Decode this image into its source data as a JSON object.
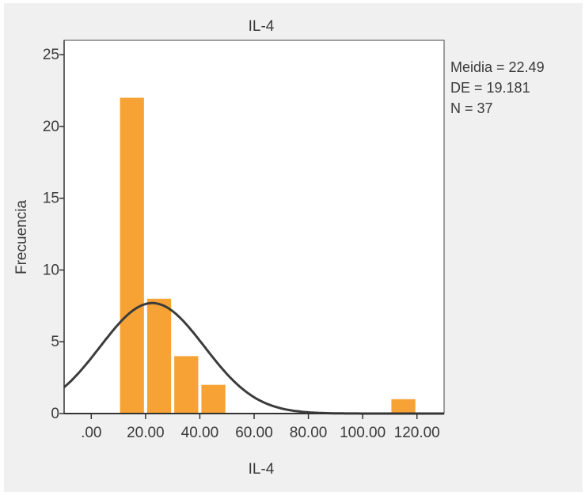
{
  "chart_data": {
    "type": "bar",
    "title": "IL-4",
    "xlabel": "IL-4",
    "ylabel": "Frecuencia",
    "bins": [
      {
        "start": 10,
        "end": 20,
        "count": 22
      },
      {
        "start": 20,
        "end": 30,
        "count": 8
      },
      {
        "start": 30,
        "end": 40,
        "count": 4
      },
      {
        "start": 40,
        "end": 50,
        "count": 2
      },
      {
        "start": 110,
        "end": 120,
        "count": 1
      }
    ],
    "xlim": [
      -10,
      130
    ],
    "ylim": [
      0,
      26
    ],
    "x_ticks": [
      0,
      20,
      40,
      60,
      80,
      100,
      120
    ],
    "x_tick_labels": [
      ".00",
      "20.00",
      "40.00",
      "60.00",
      "80.00",
      "100.00",
      "120.00"
    ],
    "y_ticks": [
      0,
      5,
      10,
      15,
      20,
      25
    ],
    "y_tick_labels": [
      "0",
      "5",
      "10",
      "15",
      "20",
      "25"
    ],
    "normal_curve": {
      "mean": 22.49,
      "sd": 19.181,
      "n": 37,
      "bin_width": 10
    },
    "stats": {
      "mean_label": "Meidia = 22.49",
      "sd_label": "DE = 19.181",
      "n_label": "N = 37"
    },
    "colors": {
      "bar": "#f7a234",
      "curve": "#3c3c3c",
      "plot_bg": "#ffffff",
      "figure_bg": "#f0f0f0"
    },
    "grid": false
  }
}
